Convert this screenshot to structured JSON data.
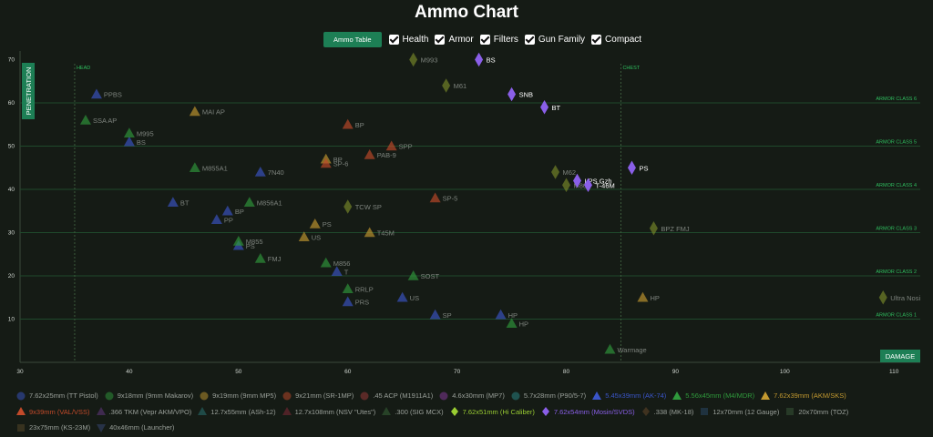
{
  "title": "Ammo Chart",
  "controls": {
    "tab_button": "Ammo Table",
    "options": [
      {
        "label": "Health",
        "checked": true
      },
      {
        "label": "Armor",
        "checked": true
      },
      {
        "label": "Filters",
        "checked": true
      },
      {
        "label": "Gun Family",
        "checked": true
      },
      {
        "label": "Compact",
        "checked": true
      }
    ]
  },
  "chart_data": {
    "type": "scatter",
    "title": "Ammo Chart",
    "xlabel": "DAMAGE",
    "ylabel": "PENETRATION",
    "xlim": [
      30,
      113
    ],
    "ylim": [
      0,
      72
    ],
    "xticks": [
      30,
      40,
      50,
      60,
      70,
      80,
      90,
      100,
      110
    ],
    "yticks": [
      10,
      20,
      30,
      40,
      50,
      60,
      70
    ],
    "grid": false,
    "vertical_lines": [
      {
        "x": 35,
        "label": "HEAD"
      },
      {
        "x": 85,
        "label": "CHEST"
      }
    ],
    "armor_classes": [
      {
        "y": 10,
        "label": "ARMOR CLASS 1"
      },
      {
        "y": 20,
        "label": "ARMOR CLASS 2"
      },
      {
        "y": 30,
        "label": "ARMOR CLASS 3"
      },
      {
        "y": 40,
        "label": "ARMOR CLASS 4"
      },
      {
        "y": 50,
        "label": "ARMOR CLASS 5"
      },
      {
        "y": 60,
        "label": "ARMOR CLASS 6"
      }
    ],
    "series": [
      {
        "name": "5.45x39mm (AK-74)",
        "color": "#3a55c8",
        "marker": "triangle",
        "dim": true,
        "points": [
          {
            "x": 37,
            "y": 62,
            "label": "PPBS"
          },
          {
            "x": 40,
            "y": 51,
            "label": "BS"
          },
          {
            "x": 52,
            "y": 44,
            "label": "7N40"
          },
          {
            "x": 44,
            "y": 37,
            "label": "BT"
          },
          {
            "x": 49,
            "y": 35,
            "label": "BP"
          },
          {
            "x": 48,
            "y": 33,
            "label": "PP"
          },
          {
            "x": 50,
            "y": 27,
            "label": "PS"
          },
          {
            "x": 59,
            "y": 21,
            "label": "T"
          },
          {
            "x": 60,
            "y": 14,
            "label": "PRS"
          },
          {
            "x": 65,
            "y": 15,
            "label": "US"
          },
          {
            "x": 68,
            "y": 11,
            "label": "SP"
          },
          {
            "x": 74,
            "y": 11,
            "label": "HP"
          }
        ]
      },
      {
        "name": "5.56x45mm (M4/MDR)",
        "color": "#2f9a3c",
        "marker": "triangle",
        "dim": true,
        "points": [
          {
            "x": 36,
            "y": 56,
            "label": "SSA AP"
          },
          {
            "x": 40,
            "y": 53,
            "label": "M995"
          },
          {
            "x": 46,
            "y": 45,
            "label": "M855A1"
          },
          {
            "x": 51,
            "y": 37,
            "label": "M856A1"
          },
          {
            "x": 50,
            "y": 28,
            "label": "M855"
          },
          {
            "x": 52,
            "y": 24,
            "label": "FMJ"
          },
          {
            "x": 58,
            "y": 23,
            "label": "M856"
          },
          {
            "x": 66,
            "y": 20,
            "label": "SOST"
          },
          {
            "x": 60,
            "y": 17,
            "label": "RRLP"
          },
          {
            "x": 75,
            "y": 9,
            "label": "HP"
          },
          {
            "x": 84,
            "y": 3,
            "label": "Warmage"
          }
        ]
      },
      {
        "name": "7.62x39mm (AKM/SKS)",
        "color": "#c49a30",
        "marker": "triangle",
        "dim": true,
        "points": [
          {
            "x": 46,
            "y": 58,
            "label": "MAI AP"
          },
          {
            "x": 58,
            "y": 47,
            "label": "BP"
          },
          {
            "x": 57,
            "y": 32,
            "label": "PS"
          },
          {
            "x": 56,
            "y": 29,
            "label": "US"
          },
          {
            "x": 62,
            "y": 30,
            "label": "T45M"
          },
          {
            "x": 87,
            "y": 15,
            "label": "HP"
          }
        ]
      },
      {
        "name": "9x39mm (VAL/VSS)",
        "color": "#c24a2a",
        "marker": "triangle",
        "dim": true,
        "points": [
          {
            "x": 60,
            "y": 55,
            "label": "BP"
          },
          {
            "x": 62,
            "y": 48,
            "label": "PAB-9"
          },
          {
            "x": 64,
            "y": 50,
            "label": "SPP"
          },
          {
            "x": 58,
            "y": 46,
            "label": "SP-6"
          },
          {
            "x": 68,
            "y": 38,
            "label": "SP-5"
          }
        ]
      },
      {
        "name": "7.62x51mm (Hi Caliber)",
        "color": "#7a8a2a",
        "marker": "diamond",
        "dim": true,
        "points": [
          {
            "x": 66,
            "y": 70,
            "label": "M993"
          },
          {
            "x": 69,
            "y": 64,
            "label": "M61"
          },
          {
            "x": 79,
            "y": 44,
            "label": "M62"
          },
          {
            "x": 80,
            "y": 41,
            "label": "M80"
          },
          {
            "x": 60,
            "y": 36,
            "label": "TCW SP"
          },
          {
            "x": 88,
            "y": 31,
            "label": "BPZ FMJ"
          },
          {
            "x": 109,
            "y": 15,
            "label": "Ultra Nosi"
          }
        ]
      },
      {
        "name": "7.62x54mm (Mosin/SVDS)",
        "color": "#8a5fe8",
        "marker": "diamond",
        "dim": false,
        "points": [
          {
            "x": 72,
            "y": 70,
            "label": "BS"
          },
          {
            "x": 75,
            "y": 62,
            "label": "SNB"
          },
          {
            "x": 78,
            "y": 59,
            "label": "BT"
          },
          {
            "x": 86,
            "y": 45,
            "label": "PS"
          },
          {
            "x": 81,
            "y": 42,
            "label": "LPS Gzh"
          },
          {
            "x": 82,
            "y": 41,
            "label": "T-46M"
          }
        ]
      }
    ]
  },
  "legend": [
    {
      "label": "7.62x25mm (TT Pistol)",
      "color": "#3a55c8",
      "marker": "circle",
      "active": false
    },
    {
      "label": "9x18mm (9mm Makarov)",
      "color": "#2f9a3c",
      "marker": "circle",
      "active": false
    },
    {
      "label": "9x19mm (9mm MP5)",
      "color": "#c49a30",
      "marker": "circle",
      "active": false
    },
    {
      "label": "9x21mm (SR-1MP)",
      "color": "#c24a2a",
      "marker": "circle",
      "active": false
    },
    {
      "label": ".45 ACP (M1911A1)",
      "color": "#a03a3a",
      "marker": "circle",
      "active": false
    },
    {
      "label": "4.6x30mm (MP7)",
      "color": "#8a3aa0",
      "marker": "circle",
      "active": false
    },
    {
      "label": "5.7x28mm (P90/5-7)",
      "color": "#2a8a8a",
      "marker": "circle",
      "active": false
    },
    {
      "label": "5.45x39mm (AK-74)",
      "color": "#3a55c8",
      "marker": "triangle",
      "active": true
    },
    {
      "label": "5.56x45mm (M4/MDR)",
      "color": "#2f9a3c",
      "marker": "triangle",
      "active": true
    },
    {
      "label": "7.62x39mm (AKM/SKS)",
      "color": "#c49a30",
      "marker": "triangle",
      "active": true
    },
    {
      "label": "9x39mm (VAL/VSS)",
      "color": "#c24a2a",
      "marker": "triangle",
      "active": true
    },
    {
      "label": ".366 TKM (Vepr AKM/VPO)",
      "color": "#6a3a8a",
      "marker": "triangle",
      "active": false
    },
    {
      "label": "12.7x55mm (ASh-12)",
      "color": "#2a7a7a",
      "marker": "triangle",
      "active": false
    },
    {
      "label": "12.7x108mm (NSV \"Utes\")",
      "color": "#8a2a3a",
      "marker": "triangle",
      "active": false
    },
    {
      "label": ".300 (SIG MCX)",
      "color": "#3a6a3a",
      "marker": "triangle",
      "active": false
    },
    {
      "label": "7.62x51mm (Hi Caliber)",
      "color": "#9acd32",
      "marker": "diamond",
      "active": true
    },
    {
      "label": "7.62x54mm (Mosin/SVDS)",
      "color": "#8a5fe8",
      "marker": "diamond",
      "active": true
    },
    {
      "label": ".338 (MK-18)",
      "color": "#6a4a2a",
      "marker": "diamond",
      "active": false
    },
    {
      "label": "12x70mm (12 Gauge)",
      "color": "#2a4a6a",
      "marker": "square",
      "active": false
    },
    {
      "label": "20x70mm (TOZ)",
      "color": "#3a5a3a",
      "marker": "square",
      "active": false
    },
    {
      "label": "23x75mm (KS-23M)",
      "color": "#5a4a2a",
      "marker": "square",
      "active": false
    },
    {
      "label": "40x46mm (Launcher)",
      "color": "#3a4a7a",
      "marker": "inv-triangle",
      "active": false
    }
  ]
}
